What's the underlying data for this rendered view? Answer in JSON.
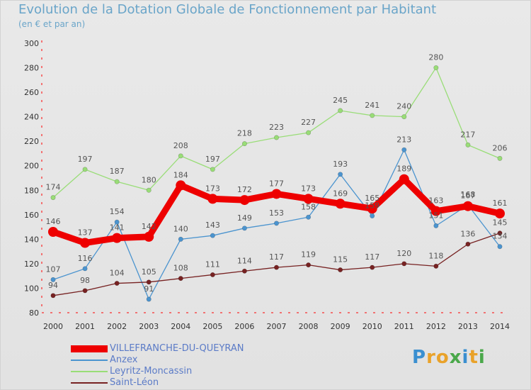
{
  "header": {
    "title": "Evolution de la Dotation Globale de Fonctionnement par Habitant",
    "subtitle": "(en € et par an)"
  },
  "brand": {
    "logo_text": "Proxiti"
  },
  "chart_data": {
    "type": "line",
    "title": "Evolution de la Dotation Globale de Fonctionnement par Habitant",
    "subtitle": "(en € et par an)",
    "xlabel": "",
    "ylabel": "",
    "x": [
      "2000",
      "2001",
      "2002",
      "2003",
      "2004",
      "2005",
      "2006",
      "2007",
      "2008",
      "2009",
      "2010",
      "2011",
      "2012",
      "2013",
      "2014"
    ],
    "ylim": [
      80,
      300
    ],
    "yticks": [
      80,
      100,
      120,
      140,
      160,
      180,
      200,
      220,
      240,
      260,
      280,
      300
    ],
    "grid": false,
    "legend_position": "bottom-left",
    "series": [
      {
        "name": "VILLEFRANCHE-DU-QUEYRAN",
        "color": "#ee0000",
        "values": [
          146,
          137,
          141,
          142,
          184,
          173,
          172,
          177,
          173,
          169,
          165,
          189,
          163,
          167,
          161
        ]
      },
      {
        "name": "Anzex",
        "color": "#4b94cf",
        "values": [
          107,
          116,
          154,
          91,
          140,
          143,
          149,
          153,
          158,
          193,
          159,
          213,
          151,
          168,
          134
        ]
      },
      {
        "name": "Leyritz-Moncassin",
        "color": "#99dd77",
        "values": [
          174,
          197,
          187,
          180,
          208,
          197,
          218,
          223,
          227,
          245,
          241,
          240,
          280,
          217,
          206
        ]
      },
      {
        "name": "Saint-Léon",
        "color": "#772222",
        "values": [
          94,
          98,
          104,
          105,
          108,
          111,
          114,
          117,
          119,
          115,
          117,
          120,
          118,
          136,
          145
        ]
      }
    ]
  }
}
